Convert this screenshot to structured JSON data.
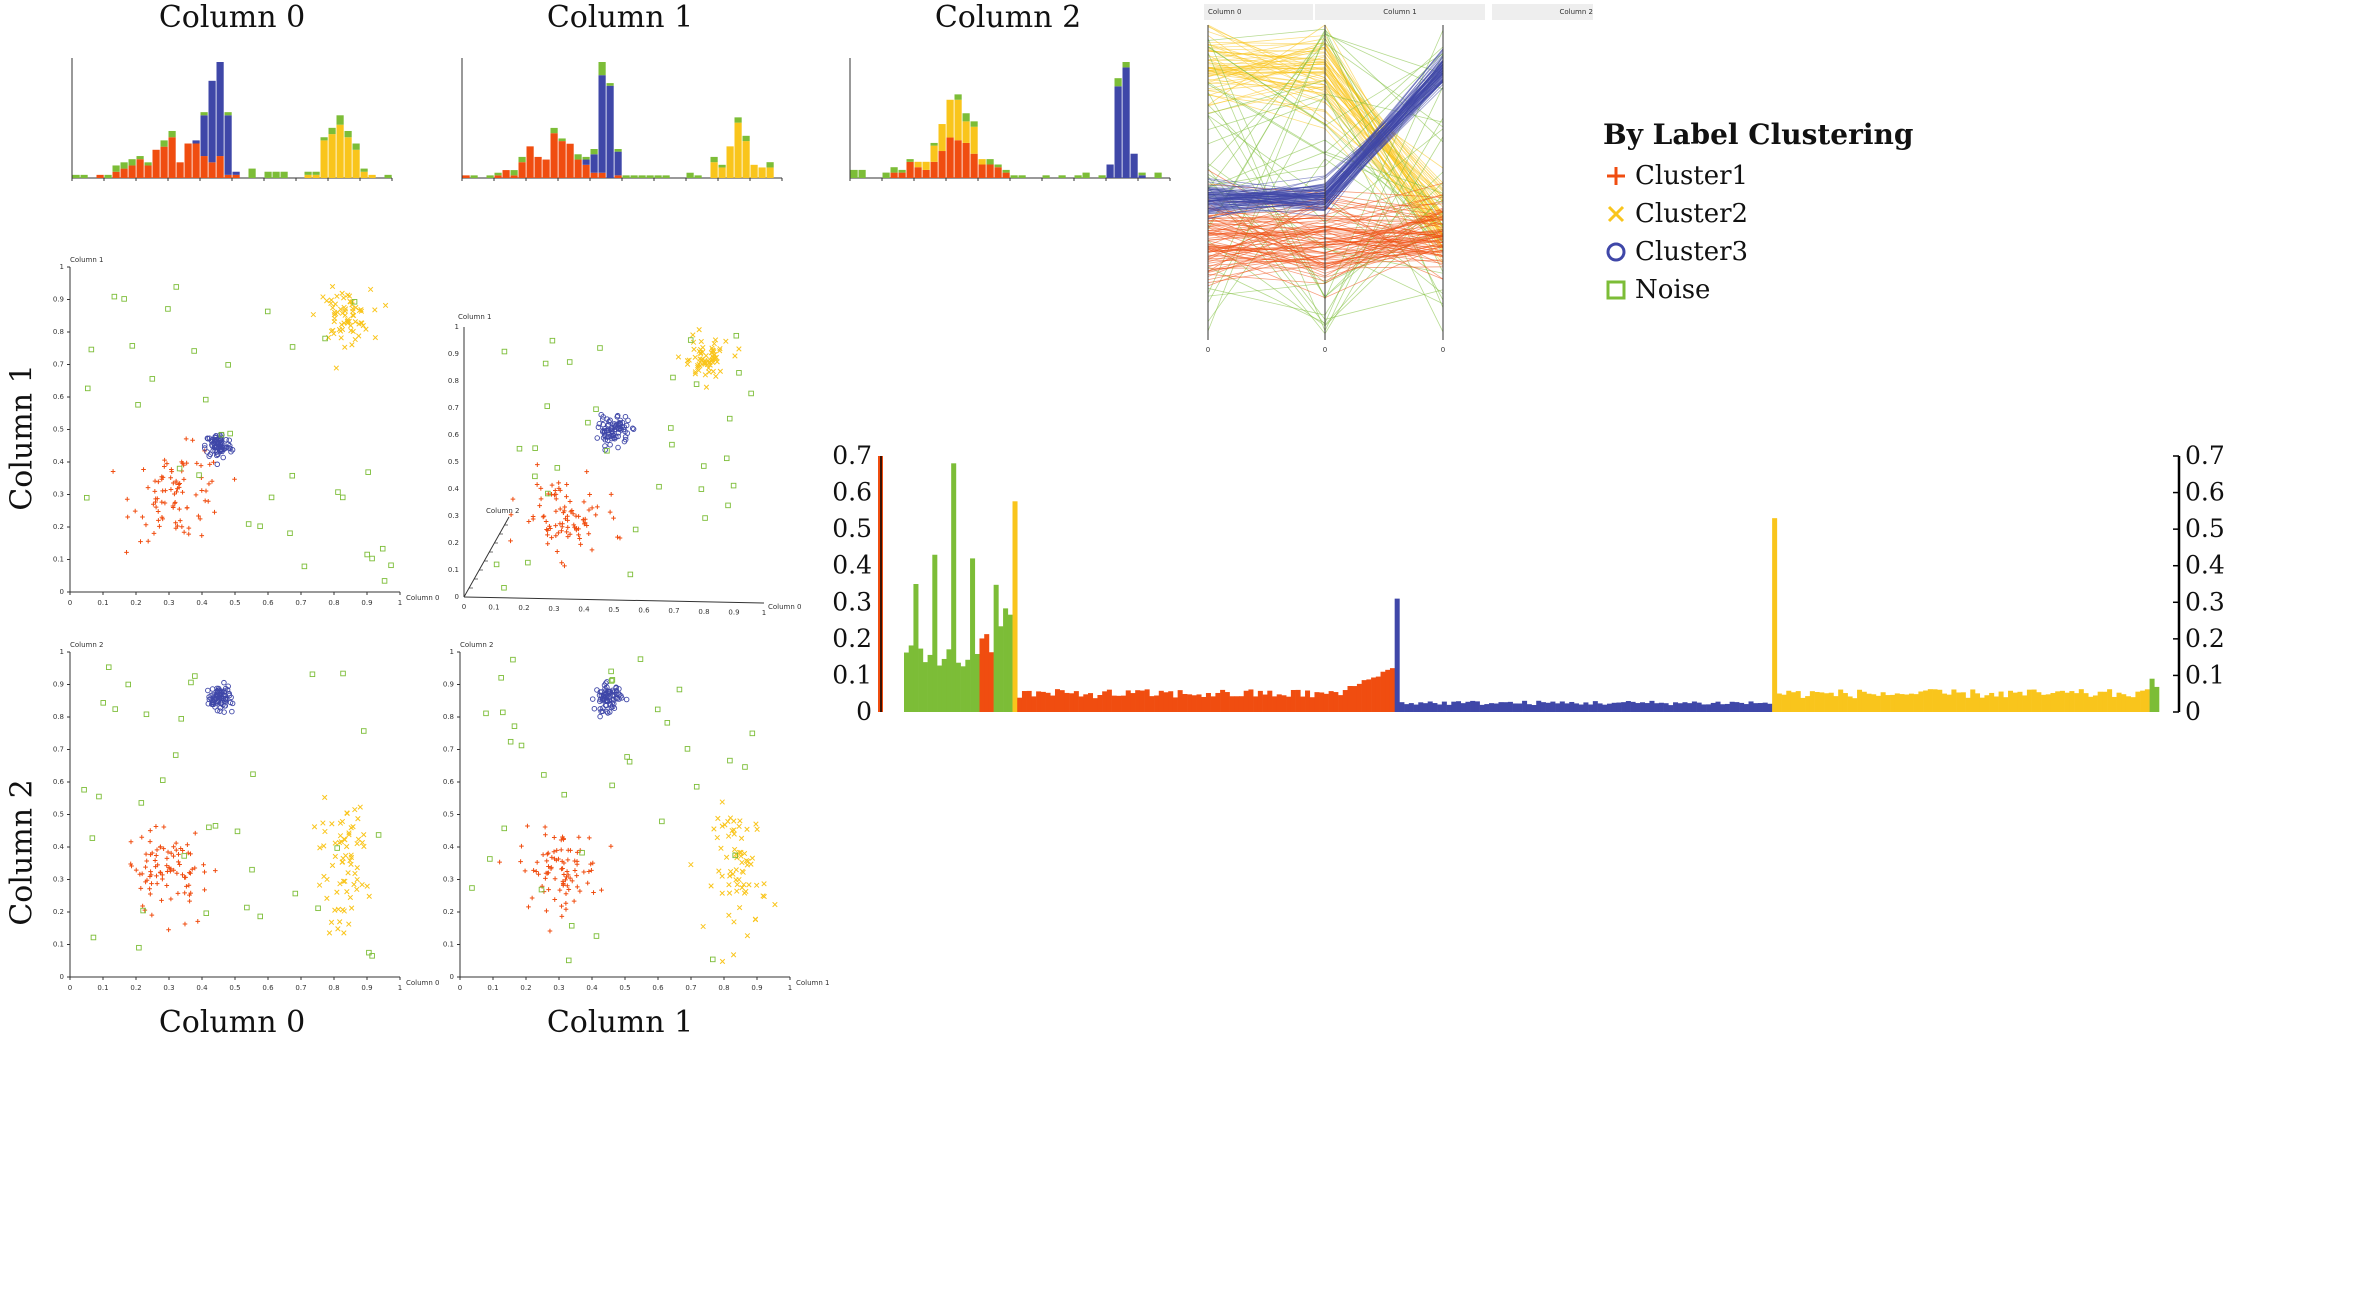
{
  "colors": {
    "Cluster1": "#f04d10",
    "Cluster2": "#f9c51c",
    "Cluster3": "#3f47a8",
    "Noise": "#7cbd37",
    "axis": "#333333"
  },
  "titles": {
    "top": [
      "Column 0",
      "Column 1",
      "Column 2"
    ],
    "bottom": [
      "Column 0",
      "Column 1"
    ],
    "left": [
      "Column 1",
      "Column 2"
    ]
  },
  "legend": {
    "title": "By Label Clustering",
    "items": [
      {
        "label": "Cluster1",
        "marker": "plus",
        "color": "#f04d10"
      },
      {
        "label": "Cluster2",
        "marker": "cross",
        "color": "#f9c51c"
      },
      {
        "label": "Cluster3",
        "marker": "circle",
        "color": "#3f47a8"
      },
      {
        "label": "Noise",
        "marker": "square",
        "color": "#7cbd37"
      }
    ]
  },
  "parallel_headers": [
    "Column 0",
    "Column 1",
    "Column 2"
  ],
  "axis_labels": {
    "s01_x": "Column 0",
    "s01_y": "Column 1",
    "s02_x": "Column 0",
    "s02_y": "Column 2",
    "s12_x": "Column 1",
    "s12_y": "Column 2",
    "s3d_x": "Column 0",
    "s3d_y": "Column 1",
    "s3d_z": "Column 2"
  },
  "chart_data": [
    {
      "type": "bar",
      "kind": "stacked-histogram",
      "variable": "Column 0",
      "bins": 40,
      "range": [
        0,
        1
      ],
      "series": [
        {
          "name": "Cluster1",
          "center": 0.33,
          "spread": 0.09,
          "count": 100
        },
        {
          "name": "Cluster2",
          "center": 0.83,
          "spread": 0.04,
          "count": 70
        },
        {
          "name": "Cluster3",
          "center": 0.45,
          "spread": 0.025,
          "count": 90
        },
        {
          "name": "Noise",
          "count": 40
        }
      ]
    },
    {
      "type": "bar",
      "kind": "stacked-histogram",
      "variable": "Column 1",
      "bins": 40,
      "range": [
        0,
        1
      ],
      "series": [
        {
          "name": "Cluster1",
          "center": 0.3,
          "spread": 0.08,
          "count": 100
        },
        {
          "name": "Cluster2",
          "center": 0.86,
          "spread": 0.04,
          "count": 70
        },
        {
          "name": "Cluster3",
          "center": 0.45,
          "spread": 0.02,
          "count": 90
        },
        {
          "name": "Noise",
          "count": 40
        }
      ]
    },
    {
      "type": "bar",
      "kind": "stacked-histogram",
      "variable": "Column 2",
      "bins": 40,
      "range": [
        0,
        1
      ],
      "series": [
        {
          "name": "Cluster1",
          "center": 0.32,
          "spread": 0.07,
          "count": 100
        },
        {
          "name": "Cluster2",
          "center": 0.33,
          "spread": 0.06,
          "count": 70
        },
        {
          "name": "Cluster3",
          "center": 0.85,
          "spread": 0.02,
          "count": 90
        },
        {
          "name": "Noise",
          "count": 40
        }
      ]
    },
    {
      "type": "scatter",
      "x_var": "Column 0",
      "y_var": "Column 1",
      "xlim": [
        0,
        1
      ],
      "ylim": [
        0,
        1
      ],
      "x_ticks": [
        "0",
        "0.1",
        "0.2",
        "0.3",
        "0.4",
        "0.5",
        "0.6",
        "0.7",
        "0.8",
        "0.9",
        "1"
      ],
      "y_ticks": [
        "0",
        "0.1",
        "0.2",
        "0.3",
        "0.4",
        "0.5",
        "0.6",
        "0.7",
        "0.8",
        "0.9",
        "1"
      ],
      "clusters": [
        {
          "name": "Cluster1",
          "cx": 0.33,
          "cy": 0.3,
          "sx": 0.07,
          "sy": 0.07,
          "n": 90
        },
        {
          "name": "Cluster2",
          "cx": 0.83,
          "cy": 0.85,
          "sx": 0.04,
          "sy": 0.04,
          "n": 70
        },
        {
          "name": "Cluster3",
          "cx": 0.45,
          "cy": 0.45,
          "sx": 0.02,
          "sy": 0.02,
          "n": 80
        },
        {
          "name": "Noise",
          "n": 35
        }
      ]
    },
    {
      "type": "scatter",
      "x_var": "Column 0",
      "y_var": "Column 2",
      "xlim": [
        0,
        1
      ],
      "ylim": [
        0,
        1
      ],
      "x_ticks": [
        "0",
        "0.1",
        "0.2",
        "0.3",
        "0.4",
        "0.5",
        "0.6",
        "0.7",
        "0.8",
        "0.9",
        "1"
      ],
      "y_ticks": [
        "0",
        "0.1",
        "0.2",
        "0.3",
        "0.4",
        "0.5",
        "0.6",
        "0.7",
        "0.8",
        "0.9",
        "1"
      ],
      "clusters": [
        {
          "name": "Cluster1",
          "cx": 0.3,
          "cy": 0.32,
          "sx": 0.06,
          "sy": 0.06,
          "n": 90
        },
        {
          "name": "Cluster2",
          "cx": 0.83,
          "cy": 0.33,
          "sx": 0.04,
          "sy": 0.1,
          "n": 70
        },
        {
          "name": "Cluster3",
          "cx": 0.45,
          "cy": 0.86,
          "sx": 0.02,
          "sy": 0.02,
          "n": 80
        },
        {
          "name": "Noise",
          "n": 35
        }
      ]
    },
    {
      "type": "scatter",
      "x_var": "Column 1",
      "y_var": "Column 2",
      "xlim": [
        0,
        1
      ],
      "ylim": [
        0,
        1
      ],
      "x_ticks": [
        "0",
        "0.1",
        "0.2",
        "0.3",
        "0.4",
        "0.5",
        "0.6",
        "0.7",
        "0.8",
        "0.9",
        "1"
      ],
      "y_ticks": [
        "0",
        "0.1",
        "0.2",
        "0.3",
        "0.4",
        "0.5",
        "0.6",
        "0.7",
        "0.8",
        "0.9",
        "1"
      ],
      "clusters": [
        {
          "name": "Cluster1",
          "cx": 0.3,
          "cy": 0.33,
          "sx": 0.06,
          "sy": 0.06,
          "n": 90
        },
        {
          "name": "Cluster2",
          "cx": 0.85,
          "cy": 0.33,
          "sx": 0.04,
          "sy": 0.1,
          "n": 70
        },
        {
          "name": "Cluster3",
          "cx": 0.45,
          "cy": 0.86,
          "sx": 0.02,
          "sy": 0.02,
          "n": 80
        },
        {
          "name": "Noise",
          "n": 35
        }
      ]
    },
    {
      "type": "scatter",
      "kind": "3d-scatter",
      "x_var": "Column 0",
      "y_var": "Column 1",
      "z_var": "Column 2",
      "x_ticks": [
        "0",
        "0.1",
        "0.2",
        "0.3",
        "0.4",
        "0.5",
        "0.6",
        "0.7",
        "0.8",
        "0.9",
        "1"
      ],
      "y_ticks": [
        "0",
        "0.1",
        "0.2",
        "0.3",
        "0.4",
        "0.5",
        "0.6",
        "0.7",
        "0.8",
        "0.9",
        "1"
      ],
      "clusters": [
        {
          "name": "Cluster1",
          "cx": 0.33,
          "cy": 0.3,
          "n": 90
        },
        {
          "name": "Cluster2",
          "cx": 0.8,
          "cy": 0.88,
          "n": 70
        },
        {
          "name": "Cluster3",
          "cx": 0.5,
          "cy": 0.62,
          "n": 80
        },
        {
          "name": "Noise",
          "n": 35
        }
      ]
    },
    {
      "type": "line",
      "kind": "parallel-coordinates",
      "axes": [
        "Column 0",
        "Column 1",
        "Column 2"
      ],
      "axis_ticks": [
        "0",
        "0",
        "0"
      ],
      "groups": [
        {
          "name": "Cluster2",
          "values": [
            0.85,
            0.85,
            0.35
          ],
          "n": 60
        },
        {
          "name": "Noise",
          "n": 35
        },
        {
          "name": "Cluster1",
          "values": [
            0.32,
            0.32,
            0.33
          ],
          "n": 80
        },
        {
          "name": "Cluster3",
          "values": [
            0.45,
            0.45,
            0.86
          ],
          "n": 80
        }
      ]
    },
    {
      "type": "bar",
      "kind": "reachability-plot",
      "ylim": [
        0,
        0.7
      ],
      "y_ticks": [
        "0",
        "0.1",
        "0.2",
        "0.3",
        "0.4",
        "0.5",
        "0.6",
        "0.7"
      ],
      "segments": [
        {
          "name": "Noise",
          "count": 16,
          "typical": 0.15,
          "peaks": [
            0.35,
            0.43,
            0.68,
            0.42
          ]
        },
        {
          "name": "Cluster1",
          "count": 3,
          "typical": 0.21
        },
        {
          "name": "Noise",
          "count": 4,
          "typical": 0.3
        },
        {
          "name": "Cluster2",
          "count": 1,
          "typical": 0.51
        },
        {
          "name": "Cluster1",
          "count": 80,
          "typical": 0.05,
          "end_rise": 0.12
        },
        {
          "name": "Cluster3",
          "count": 80,
          "typical": 0.025,
          "first": 0.31
        },
        {
          "name": "Cluster2",
          "count": 80,
          "typical": 0.05,
          "first": 0.53
        },
        {
          "name": "Noise",
          "count": 2,
          "typical": 0.09
        }
      ]
    }
  ]
}
